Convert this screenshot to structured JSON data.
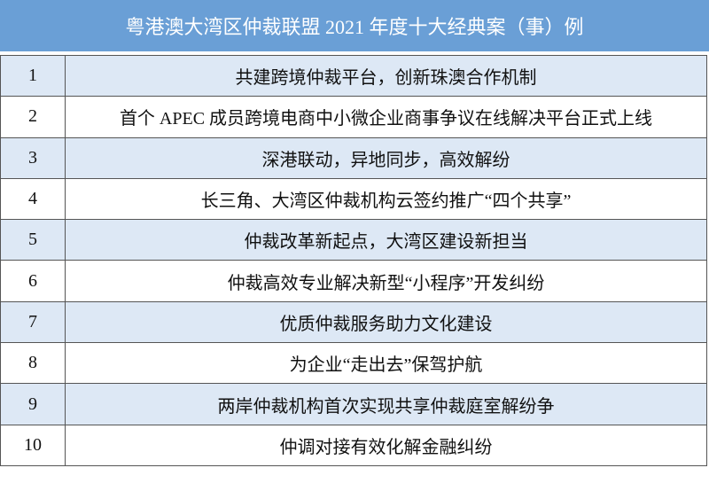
{
  "header": {
    "title": "粤港澳大湾区仲裁联盟 2021 年度十大经典案（事）例"
  },
  "table": {
    "rows": [
      [
        "1",
        "共建跨境仲裁平台，创新珠澳合作机制"
      ],
      [
        "2",
        "首个 APEC 成员跨境电商中小微企业商事争议在线解决平台正式上线"
      ],
      [
        "3",
        "深港联动，异地同步，高效解纷"
      ],
      [
        "4",
        "长三角、大湾区仲裁机构云签约推广“四个共享”"
      ],
      [
        "5",
        "仲裁改革新起点，大湾区建设新担当"
      ],
      [
        "6",
        "仲裁高效专业解决新型“小程序”开发纠纷"
      ],
      [
        "7",
        "优质仲裁服务助力文化建设"
      ],
      [
        "8",
        "为企业“走出去”保驾护航"
      ],
      [
        "9",
        "两岸仲裁机构首次实现共享仲裁庭室解纷争"
      ],
      [
        "10",
        "仲调对接有效化解金融纠纷"
      ]
    ]
  }
}
